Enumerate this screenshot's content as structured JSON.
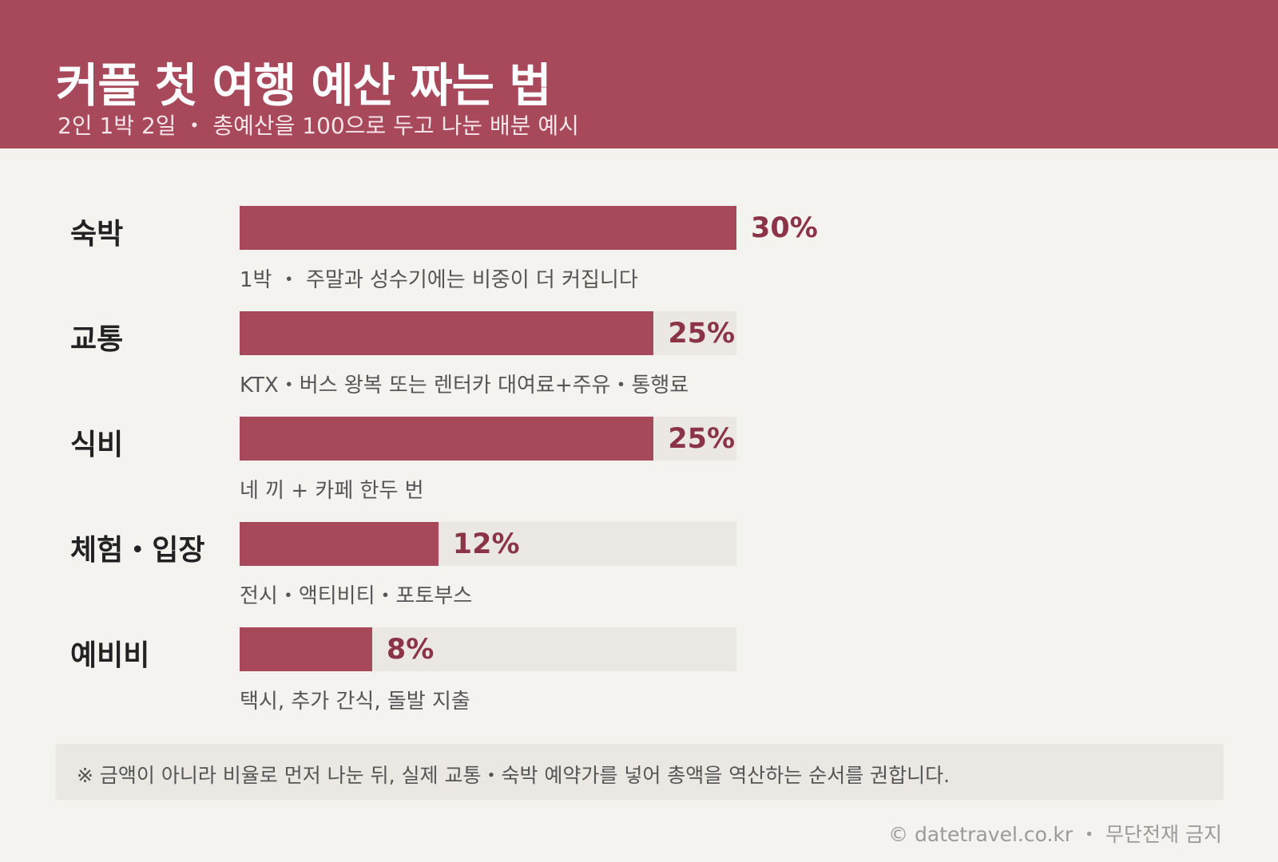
{
  "header": {
    "title": "커플 첫 여행 예산 짜는 법",
    "subtitle": "2인 1박 2일 ・ 총예산을 100으로 두고 나눈 배분 예시"
  },
  "chart_data": {
    "type": "bar",
    "orientation": "horizontal",
    "categories": [
      "숙박",
      "교통",
      "식비",
      "체험・입장",
      "예비비"
    ],
    "values": [
      30,
      25,
      25,
      12,
      8
    ],
    "value_labels": [
      "30%",
      "25%",
      "25%",
      "12%",
      "8%"
    ],
    "notes": [
      "1박 ・ 주말과 성수기에는 비중이 더 커집니다",
      "KTX・버스 왕복 또는 렌터카 대여료+주유・통행료",
      "네 끼 + 카페 한두 번",
      "전시・액티비티・포토부스",
      "택시, 추가 간식, 돌발 지출"
    ],
    "xlim": [
      0,
      30
    ],
    "grid": false,
    "colors": {
      "bar": "#a8495b",
      "track": "#ebe8e3",
      "value": "#8c3447"
    }
  },
  "footer": {
    "note": "※ 금액이 아니라 비율로 먼저 나눈 뒤, 실제 교통・숙박 예약가를 넣어 총액을 역산하는 순서를 권합니다.",
    "credit": "© datetravel.co.kr ・ 무단전재 금지"
  }
}
